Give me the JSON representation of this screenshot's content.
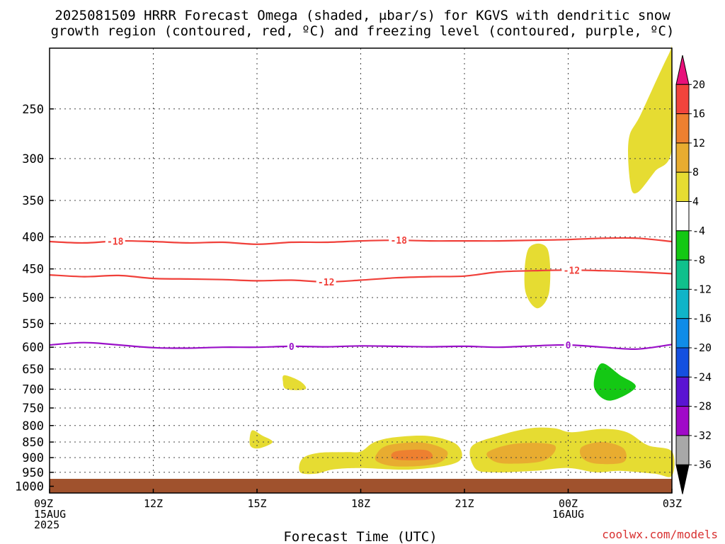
{
  "chart_data": {
    "type": "heatmap",
    "title_lines": [
      "2025081509 HRRR Forecast Omega (shaded, μbar/s) for KGVS with dendritic snow",
      "growth region (contoured, red, ºC) and freezing level (contoured, purple, ºC)"
    ],
    "xlabel": "Forecast Time (UTC)",
    "credit": "coolwx.com/models",
    "x_ticks": [
      {
        "hours": 0,
        "lines": [
          "09Z",
          "15AUG",
          "2025"
        ]
      },
      {
        "hours": 3,
        "lines": [
          "12Z"
        ]
      },
      {
        "hours": 6,
        "lines": [
          "15Z"
        ]
      },
      {
        "hours": 9,
        "lines": [
          "18Z"
        ]
      },
      {
        "hours": 12,
        "lines": [
          "21Z"
        ]
      },
      {
        "hours": 15,
        "lines": [
          "00Z",
          "16AUG"
        ]
      },
      {
        "hours": 18,
        "lines": [
          "03Z"
        ]
      }
    ],
    "xlim_hours": [
      0,
      18
    ],
    "y_ticks": [
      250,
      300,
      350,
      400,
      450,
      500,
      550,
      600,
      650,
      700,
      750,
      800,
      850,
      900,
      950,
      1000
    ],
    "ylim_hpa": [
      200,
      1025
    ],
    "y_scale": "log-pressure",
    "grid": true,
    "colorbar": {
      "labels": [
        "20",
        "16",
        "12",
        "8",
        "4",
        "-4",
        "-8",
        "-12",
        "-16",
        "-20",
        "-24",
        "-28",
        "-32",
        "-36"
      ],
      "colors": [
        "#e8107a",
        "#f2443c",
        "#ee8030",
        "#e8ac30",
        "#e6dc32",
        "#ffffff",
        "#14c814",
        "#10c08c",
        "#10b4c8",
        "#108ce8",
        "#1450e0",
        "#5a14d2",
        "#a00ac8",
        "#a8a8a8",
        "#000000"
      ]
    },
    "contours": [
      {
        "level": "-18",
        "color": "#f0403a",
        "label_at": [
          [
            1.9,
            "-18"
          ],
          [
            10.1,
            "-18"
          ]
        ],
        "points": [
          [
            0,
            407
          ],
          [
            1,
            409
          ],
          [
            2,
            406
          ],
          [
            3,
            407
          ],
          [
            4,
            409
          ],
          [
            5,
            408
          ],
          [
            6,
            411
          ],
          [
            7,
            408
          ],
          [
            8,
            408
          ],
          [
            9,
            406
          ],
          [
            10,
            405
          ],
          [
            11,
            406
          ],
          [
            12,
            406
          ],
          [
            13,
            406
          ],
          [
            14,
            405
          ],
          [
            15,
            404
          ],
          [
            16,
            402
          ],
          [
            17,
            402
          ],
          [
            18,
            407
          ]
        ]
      },
      {
        "level": "-12",
        "color": "#f0403a",
        "label_at": [
          [
            8.0,
            "-12"
          ],
          [
            15.1,
            "-12"
          ]
        ],
        "points": [
          [
            0,
            460
          ],
          [
            1,
            463
          ],
          [
            2,
            461
          ],
          [
            3,
            466
          ],
          [
            4,
            467
          ],
          [
            5,
            468
          ],
          [
            6,
            470
          ],
          [
            7,
            469
          ],
          [
            8,
            472
          ],
          [
            9,
            469
          ],
          [
            10,
            465
          ],
          [
            11,
            463
          ],
          [
            12,
            462
          ],
          [
            13,
            455
          ],
          [
            14,
            453
          ],
          [
            15,
            452
          ],
          [
            16,
            453
          ],
          [
            17,
            455
          ],
          [
            18,
            458
          ]
        ]
      },
      {
        "level": "0",
        "color": "#9a10c8",
        "label_at": [
          [
            7.0,
            "0"
          ],
          [
            15.0,
            "0"
          ]
        ],
        "points": [
          [
            0,
            595
          ],
          [
            1,
            590
          ],
          [
            2,
            595
          ],
          [
            3,
            601
          ],
          [
            4,
            602
          ],
          [
            5,
            600
          ],
          [
            6,
            600
          ],
          [
            7,
            598
          ],
          [
            8,
            599
          ],
          [
            9,
            597
          ],
          [
            10,
            598
          ],
          [
            11,
            599
          ],
          [
            12,
            598
          ],
          [
            13,
            600
          ],
          [
            14,
            597
          ],
          [
            15,
            595
          ],
          [
            16,
            600
          ],
          [
            17,
            604
          ],
          [
            18,
            594
          ]
        ]
      }
    ],
    "shaded": [
      {
        "value": "4 to 8",
        "color": "#e6dc32",
        "points": [
          [
            17.9,
            205
          ],
          [
            18,
            205
          ],
          [
            18,
            290
          ],
          [
            17.5,
            315
          ],
          [
            17.0,
            340
          ],
          [
            16.8,
            330
          ],
          [
            16.75,
            280
          ],
          [
            17.1,
            255
          ]
        ]
      },
      {
        "value": "4 to 8",
        "color": "#e6dc32",
        "points": [
          [
            13.85,
            418
          ],
          [
            14.4,
            418
          ],
          [
            14.45,
            490
          ],
          [
            14.1,
            520
          ],
          [
            13.75,
            485
          ]
        ]
      },
      {
        "value": "4 to 8",
        "color": "#e6dc32",
        "points": [
          [
            6.8,
            665
          ],
          [
            7.25,
            680
          ],
          [
            7.4,
            700
          ],
          [
            6.85,
            700
          ],
          [
            6.75,
            680
          ]
        ]
      },
      {
        "value": "4 to 8",
        "color": "#e6dc32",
        "points": [
          [
            5.85,
            815
          ],
          [
            6.15,
            830
          ],
          [
            6.45,
            850
          ],
          [
            6.05,
            870
          ],
          [
            5.8,
            860
          ]
        ]
      },
      {
        "value": "4 to 8",
        "color": "#e6dc32",
        "points": [
          [
            7.3,
            905
          ],
          [
            7.75,
            885
          ],
          [
            8.6,
            882
          ],
          [
            9.0,
            880
          ],
          [
            9.4,
            850
          ],
          [
            10.0,
            835
          ],
          [
            11.0,
            832
          ],
          [
            11.8,
            860
          ],
          [
            11.8,
            915
          ],
          [
            10.5,
            940
          ],
          [
            9.0,
            935
          ],
          [
            8.2,
            940
          ],
          [
            7.7,
            955
          ],
          [
            7.25,
            950
          ]
        ]
      },
      {
        "value": "4 to 8",
        "color": "#e6dc32",
        "points": [
          [
            12.2,
            865
          ],
          [
            13.0,
            830
          ],
          [
            13.9,
            808
          ],
          [
            14.6,
            808
          ],
          [
            15.1,
            820
          ],
          [
            16.0,
            810
          ],
          [
            16.7,
            820
          ],
          [
            17.3,
            860
          ],
          [
            18,
            880
          ],
          [
            18,
            962
          ],
          [
            17.5,
            955
          ],
          [
            16.5,
            945
          ],
          [
            15.8,
            950
          ],
          [
            15.0,
            935
          ],
          [
            14.0,
            945
          ],
          [
            12.8,
            950
          ],
          [
            12.3,
            935
          ]
        ]
      },
      {
        "value": "8 to 12",
        "color": "#e8ac30",
        "points": [
          [
            9.45,
            890
          ],
          [
            9.8,
            860
          ],
          [
            10.8,
            852
          ],
          [
            11.5,
            880
          ],
          [
            11.2,
            920
          ],
          [
            10.1,
            930
          ],
          [
            9.5,
            915
          ]
        ]
      },
      {
        "value": "8 to 12",
        "color": "#e8ac30",
        "points": [
          [
            12.7,
            880
          ],
          [
            13.5,
            855
          ],
          [
            14.6,
            860
          ],
          [
            14.3,
            910
          ],
          [
            13.2,
            920
          ],
          [
            12.75,
            905
          ]
        ]
      },
      {
        "value": "8 to 12",
        "color": "#e8ac30",
        "points": [
          [
            15.4,
            865
          ],
          [
            16.0,
            850
          ],
          [
            16.6,
            870
          ],
          [
            16.6,
            915
          ],
          [
            15.8,
            920
          ],
          [
            15.4,
            900
          ]
        ]
      },
      {
        "value": "12 to 16",
        "color": "#ee8030",
        "points": [
          [
            10.0,
            880
          ],
          [
            10.9,
            876
          ],
          [
            11.0,
            905
          ],
          [
            10.0,
            906
          ]
        ]
      },
      {
        "value": "-4 to -8",
        "color": "#14c814",
        "points": [
          [
            15.95,
            637
          ],
          [
            16.5,
            665
          ],
          [
            16.95,
            695
          ],
          [
            16.2,
            730
          ],
          [
            15.75,
            695
          ]
        ]
      }
    ],
    "terrain": {
      "color": "#a0522d",
      "from_hpa": 973
    }
  }
}
